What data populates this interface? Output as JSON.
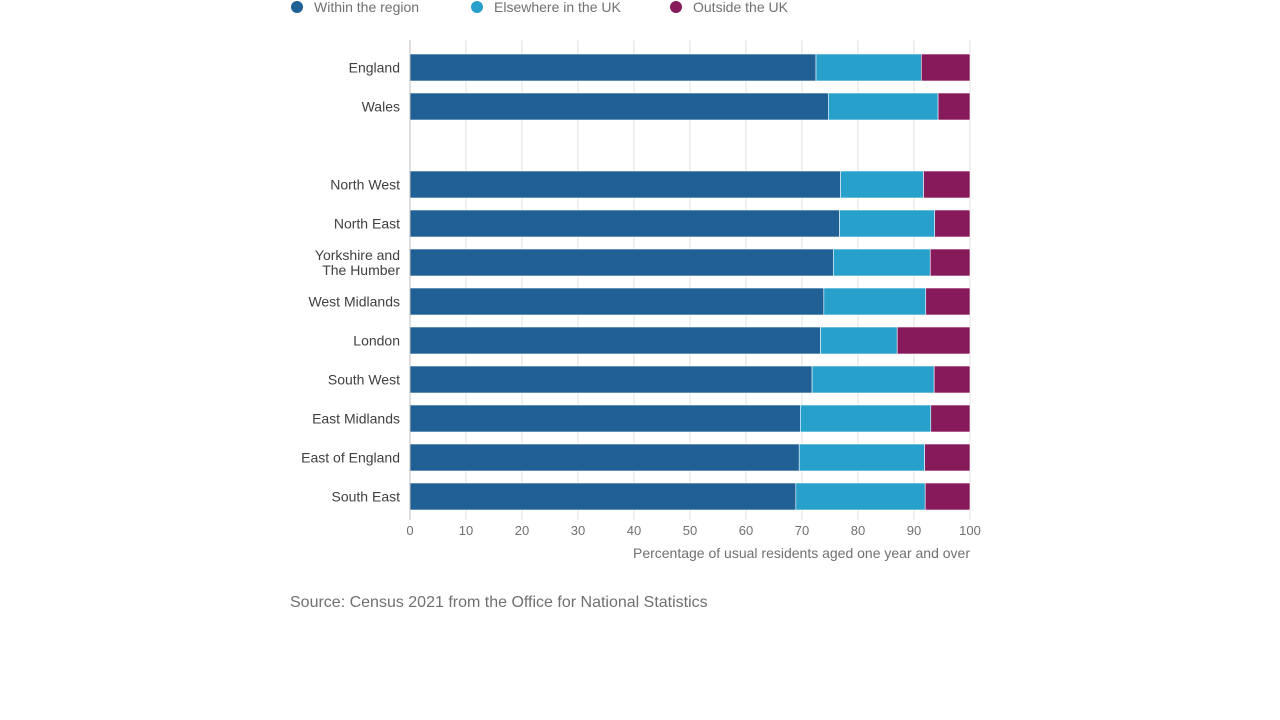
{
  "chart_data": {
    "type": "bar",
    "orientation": "horizontal",
    "stacked": true,
    "categories": [
      "England",
      "Wales",
      "",
      "North West",
      "North East",
      "Yorkshire and The Humber",
      "West Midlands",
      "London",
      "South West",
      "East Midlands",
      "East of England",
      "South East"
    ],
    "category_lines": [
      [
        "England"
      ],
      [
        "Wales"
      ],
      [],
      [
        "North West"
      ],
      [
        "North East"
      ],
      [
        "Yorkshire and",
        "The Humber"
      ],
      [
        "West Midlands"
      ],
      [
        "London"
      ],
      [
        "South West"
      ],
      [
        "East Midlands"
      ],
      [
        "East of England"
      ],
      [
        "South East"
      ]
    ],
    "series": [
      {
        "name": "Within the region",
        "color": "#206095",
        "values": [
          72.5,
          74.7,
          null,
          76.9,
          76.7,
          75.6,
          73.9,
          73.3,
          71.8,
          69.7,
          69.5,
          68.9
        ]
      },
      {
        "name": "Elsewhere in the UK",
        "color": "#27A0CC",
        "values": [
          18.8,
          19.6,
          null,
          14.8,
          17.0,
          17.3,
          18.2,
          13.7,
          21.8,
          23.3,
          22.4,
          23.1
        ]
      },
      {
        "name": "Outside the UK",
        "color": "#871A5B",
        "values": [
          8.7,
          5.7,
          null,
          8.3,
          6.3,
          7.1,
          7.9,
          13.0,
          6.4,
          7.0,
          8.1,
          8.0
        ]
      }
    ],
    "xlim": [
      0,
      100
    ],
    "xticks": [
      0,
      10,
      20,
      30,
      40,
      50,
      60,
      70,
      80,
      90,
      100
    ],
    "xlabel": "Percentage of usual residents aged one year and over",
    "ylabel": "",
    "grid": true,
    "legend_position": "top-left"
  },
  "source": "Source: Census 2021 from the Office for National Statistics"
}
